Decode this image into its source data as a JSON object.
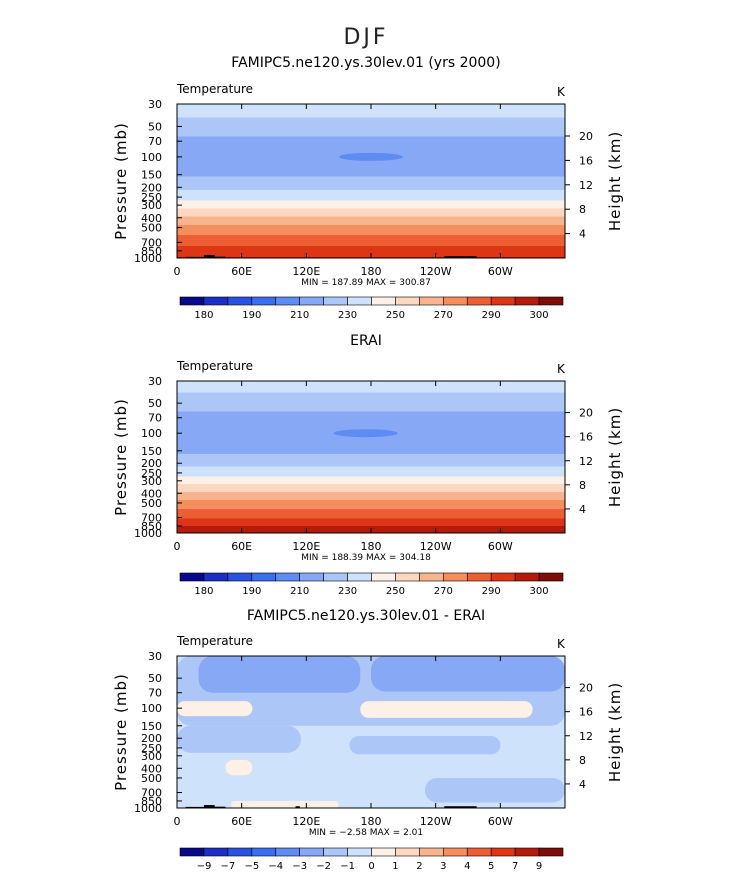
{
  "figure_title": "DJF",
  "colors": {
    "abs_palette": [
      "#08088a",
      "#1b2fc6",
      "#2a52e0",
      "#3a6ef0",
      "#5f8cf2",
      "#86a8f5",
      "#adc6f8",
      "#cfe2fb",
      "#fdf0e6",
      "#fbd8bf",
      "#f8b48e",
      "#f58d5d",
      "#ec5f34",
      "#dc3616",
      "#b41b0b",
      "#7e0c07"
    ],
    "diff_palette": [
      "#08088a",
      "#1b2fc6",
      "#2a52e0",
      "#3a6ef0",
      "#5f8cf2",
      "#86a8f5",
      "#adc6f8",
      "#cfe2fb",
      "#fdf0e6",
      "#fbd8bf",
      "#f8b48e",
      "#f58d5d",
      "#ec5f34",
      "#dc3616",
      "#b41b0b",
      "#7e0c07"
    ],
    "topography": "#000000"
  },
  "chart_data": [
    {
      "type": "heatmap",
      "title": "FAMIPC5.ne120.ys.30lev.01 (yrs 2000)",
      "left_label": "Temperature",
      "right_label": "K",
      "xlabel": "",
      "ylabel": "Pressure (mb)",
      "ylabel_right": "Height (km)",
      "x_ticks": [
        "0",
        "60E",
        "120E",
        "180",
        "120W",
        "60W"
      ],
      "x_tick_values": [
        0,
        60,
        120,
        180,
        240,
        300
      ],
      "xlim": [
        0,
        360
      ],
      "y_ticks": [
        "30",
        "50",
        "70",
        "100",
        "150",
        "200",
        "250",
        "300",
        "400",
        "500",
        "700",
        "850",
        "1000"
      ],
      "y_tick_values": [
        30,
        50,
        70,
        100,
        150,
        200,
        250,
        300,
        400,
        500,
        700,
        850,
        1000
      ],
      "ylim": [
        1000,
        30
      ],
      "yscale": "log",
      "height_ticks": [
        "20",
        "16",
        "12",
        "8",
        "4"
      ],
      "height_tick_values": [
        20,
        16,
        12,
        8,
        4
      ],
      "stats_text": "MIN = 187.89   MAX = 300.87",
      "min": 187.89,
      "max": 300.87,
      "colorbar_labels": [
        "180",
        "190",
        "210",
        "230",
        "250",
        "270",
        "290",
        "300"
      ],
      "colorbar_label_positions": [
        1,
        3,
        5,
        7,
        9,
        11,
        13,
        15
      ],
      "profile": [
        {
          "p": 30,
          "value": 226
        },
        {
          "p": 50,
          "value": 216
        },
        {
          "p": 70,
          "value": 207
        },
        {
          "p": 100,
          "value": 203
        },
        {
          "p": 150,
          "value": 209
        },
        {
          "p": 200,
          "value": 218
        },
        {
          "p": 250,
          "value": 226
        },
        {
          "p": 300,
          "value": 236
        },
        {
          "p": 400,
          "value": 252
        },
        {
          "p": 500,
          "value": 263
        },
        {
          "p": 700,
          "value": 277
        },
        {
          "p": 850,
          "value": 285
        },
        {
          "p": 1000,
          "value": 291
        }
      ],
      "cold_core": {
        "lon": 180,
        "p": 100,
        "value": 194
      },
      "topography": [
        {
          "lon0": 8,
          "lon1": 25,
          "p": 975
        },
        {
          "lon0": 25,
          "lon1": 35,
          "p": 935
        },
        {
          "lon0": 35,
          "lon1": 45,
          "p": 970
        },
        {
          "lon0": 248,
          "lon1": 278,
          "p": 960
        }
      ]
    },
    {
      "type": "heatmap",
      "title": "ERAI",
      "left_label": "Temperature",
      "right_label": "K",
      "xlabel": "",
      "ylabel": "Pressure (mb)",
      "ylabel_right": "Height (km)",
      "x_ticks": [
        "0",
        "60E",
        "120E",
        "180",
        "120W",
        "60W"
      ],
      "x_tick_values": [
        0,
        60,
        120,
        180,
        240,
        300
      ],
      "xlim": [
        0,
        360
      ],
      "y_ticks": [
        "30",
        "50",
        "70",
        "100",
        "150",
        "200",
        "250",
        "300",
        "400",
        "500",
        "700",
        "850",
        "1000"
      ],
      "y_tick_values": [
        30,
        50,
        70,
        100,
        150,
        200,
        250,
        300,
        400,
        500,
        700,
        850,
        1000
      ],
      "ylim": [
        1000,
        30
      ],
      "yscale": "log",
      "height_ticks": [
        "20",
        "16",
        "12",
        "8",
        "4"
      ],
      "height_tick_values": [
        20,
        16,
        12,
        8,
        4
      ],
      "stats_text": "MIN = 188.39   MAX = 304.18",
      "min": 188.39,
      "max": 304.18,
      "colorbar_labels": [
        "180",
        "190",
        "210",
        "230",
        "250",
        "270",
        "290",
        "300"
      ],
      "colorbar_label_positions": [
        1,
        3,
        5,
        7,
        9,
        11,
        13,
        15
      ],
      "profile": [
        {
          "p": 30,
          "value": 225
        },
        {
          "p": 50,
          "value": 215
        },
        {
          "p": 70,
          "value": 206
        },
        {
          "p": 100,
          "value": 202
        },
        {
          "p": 150,
          "value": 208
        },
        {
          "p": 200,
          "value": 217
        },
        {
          "p": 250,
          "value": 226
        },
        {
          "p": 300,
          "value": 236
        },
        {
          "p": 400,
          "value": 252
        },
        {
          "p": 500,
          "value": 264
        },
        {
          "p": 700,
          "value": 279
        },
        {
          "p": 850,
          "value": 290
        },
        {
          "p": 1000,
          "value": 296
        }
      ],
      "cold_core": {
        "lon": 175,
        "p": 100,
        "value": 193
      },
      "topography": []
    },
    {
      "type": "heatmap",
      "title": "FAMIPC5.ne120.ys.30lev.01 - ERAI",
      "left_label": "Temperature",
      "right_label": "K",
      "xlabel": "",
      "ylabel": "Pressure (mb)",
      "ylabel_right": "Height (km)",
      "x_ticks": [
        "0",
        "60E",
        "120E",
        "180",
        "120W",
        "60W"
      ],
      "x_tick_values": [
        0,
        60,
        120,
        180,
        240,
        300
      ],
      "xlim": [
        0,
        360
      ],
      "y_ticks": [
        "30",
        "50",
        "70",
        "100",
        "150",
        "200",
        "250",
        "300",
        "400",
        "500",
        "700",
        "850",
        "1000"
      ],
      "y_tick_values": [
        30,
        50,
        70,
        100,
        150,
        200,
        250,
        300,
        400,
        500,
        700,
        850,
        1000
      ],
      "ylim": [
        1000,
        30
      ],
      "yscale": "log",
      "height_ticks": [
        "20",
        "16",
        "12",
        "8",
        "4"
      ],
      "height_tick_values": [
        20,
        16,
        12,
        8,
        4
      ],
      "stats_text": "MIN = −2.58   MAX =  2.01",
      "min": -2.58,
      "max": 2.01,
      "colorbar_labels": [
        "−9",
        "−7",
        "−5",
        "−4",
        "−3",
        "−2",
        "−1",
        "0",
        "1",
        "2",
        "3",
        "4",
        "5",
        "7",
        "9"
      ],
      "colorbar_label_positions": [
        1,
        2,
        3,
        4,
        5,
        6,
        7,
        8,
        9,
        10,
        11,
        12,
        13,
        14,
        15
      ],
      "background_value": -0.5,
      "regions": [
        {
          "lon0": 0,
          "lon1": 360,
          "p0": 30,
          "p1": 150,
          "value": -1.5
        },
        {
          "lon0": 180,
          "lon1": 360,
          "p0": 30,
          "p1": 68,
          "value": -2.5
        },
        {
          "lon0": 20,
          "lon1": 170,
          "p0": 30,
          "p1": 70,
          "value": -2.5
        },
        {
          "lon0": 0,
          "lon1": 70,
          "p0": 85,
          "p1": 120,
          "value": 0.5
        },
        {
          "lon0": 170,
          "lon1": 330,
          "p0": 85,
          "p1": 125,
          "value": 0.5
        },
        {
          "lon0": 0,
          "lon1": 115,
          "p0": 150,
          "p1": 280,
          "value": -1.5
        },
        {
          "lon0": 160,
          "lon1": 300,
          "p0": 190,
          "p1": 290,
          "value": -1.5
        },
        {
          "lon0": 230,
          "lon1": 360,
          "p0": 500,
          "p1": 880,
          "value": -1.5
        },
        {
          "lon0": 45,
          "lon1": 70,
          "p0": 330,
          "p1": 470,
          "value": 0.5
        },
        {
          "lon0": 50,
          "lon1": 150,
          "p0": 850,
          "p1": 1000,
          "value": 0.5
        }
      ],
      "topography": [
        {
          "lon0": 8,
          "lon1": 25,
          "p": 975
        },
        {
          "lon0": 25,
          "lon1": 35,
          "p": 935
        },
        {
          "lon0": 35,
          "lon1": 45,
          "p": 970
        },
        {
          "lon0": 110,
          "lon1": 114,
          "p": 960
        },
        {
          "lon0": 248,
          "lon1": 278,
          "p": 960
        }
      ]
    }
  ]
}
